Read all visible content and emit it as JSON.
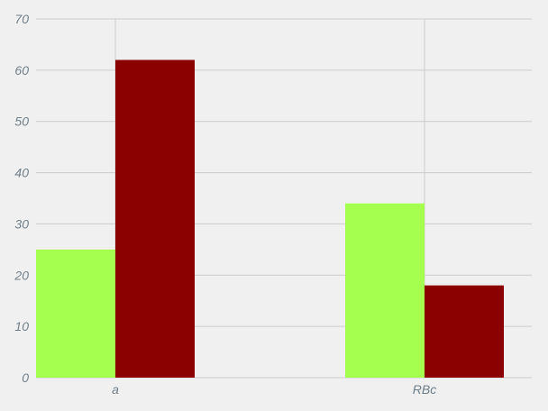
{
  "chart_data": {
    "type": "bar",
    "categories": [
      "a",
      "RBc"
    ],
    "series": [
      {
        "values": [
          25,
          34
        ],
        "color": "#a5ff4f"
      },
      {
        "values": [
          62,
          18
        ],
        "color": "#8b0000"
      }
    ],
    "ylim": [
      0,
      70
    ],
    "yticks": [
      0,
      10,
      20,
      30,
      40,
      50,
      60,
      70
    ],
    "grid": true,
    "legend": "none"
  }
}
